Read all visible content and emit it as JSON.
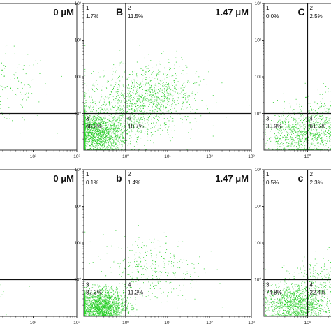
{
  "chart_data": [
    {
      "type": "scatter",
      "label": "",
      "concentration": "0 μM",
      "quadrants": [
        {
          "id": "1",
          "value": ""
        },
        {
          "id": "2",
          "value": ""
        },
        {
          "id": "3",
          "value": ""
        },
        {
          "id": "4",
          "value": ""
        }
      ],
      "xlim": [
        0.1,
        1000
      ],
      "ylim": [
        0.1,
        1000
      ],
      "log_scale": true,
      "gate": [
        1,
        1
      ],
      "x_tick_labels": [
        "10¹",
        "10²",
        "10³"
      ],
      "y_tick_labels": [],
      "point_color": "#22cc22",
      "clusters": [
        {
          "cx": 0.2,
          "cy": 0.35,
          "spread": 0.55,
          "n": 300
        },
        {
          "cx": 1.2,
          "cy": 0.7,
          "spread": 0.6,
          "n": 200
        }
      ]
    },
    {
      "type": "scatter",
      "label": "B",
      "concentration": "1.47 μM",
      "quadrants": [
        {
          "id": "1",
          "value": "1.7%"
        },
        {
          "id": "2",
          "value": "11.5%"
        },
        {
          "id": "3",
          "value": "68.2%"
        },
        {
          "id": "4",
          "value": "18.7%"
        }
      ],
      "xlim": [
        0.1,
        1000
      ],
      "ylim": [
        0.1,
        1000
      ],
      "log_scale": true,
      "gate": [
        1,
        1
      ],
      "x_tick_labels": [
        "10⁰",
        "10¹",
        "10²",
        "10³"
      ],
      "y_tick_labels": [
        "10⁰",
        "10¹",
        "10²",
        "10³"
      ],
      "point_color": "#22cc22",
      "clusters": [
        {
          "cx": -0.7,
          "cy": -0.55,
          "spread": 0.35,
          "n": 1600
        },
        {
          "cx": 0.1,
          "cy": 0.15,
          "spread": 0.6,
          "n": 900
        },
        {
          "cx": 0.8,
          "cy": 0.6,
          "spread": 0.5,
          "n": 500
        }
      ]
    },
    {
      "type": "scatter",
      "label": "C",
      "concentration": "",
      "quadrants": [
        {
          "id": "1",
          "value": "0.0%"
        },
        {
          "id": "2",
          "value": "2.5%"
        },
        {
          "id": "3",
          "value": "35.9%"
        },
        {
          "id": "4",
          "value": "61.5%"
        }
      ],
      "xlim": [
        0.1,
        1000
      ],
      "ylim": [
        0.1,
        1000
      ],
      "log_scale": true,
      "gate": [
        1,
        1
      ],
      "x_tick_labels": [
        "10⁰"
      ],
      "y_tick_labels": [
        "10⁰",
        "10¹",
        "10²",
        "10³"
      ],
      "point_color": "#22cc22",
      "clusters": [
        {
          "cx": -0.2,
          "cy": -0.6,
          "spread": 0.4,
          "n": 700
        },
        {
          "cx": 0.5,
          "cy": -0.3,
          "spread": 0.5,
          "n": 600
        }
      ]
    },
    {
      "type": "scatter",
      "label": "",
      "concentration": "0 μM",
      "quadrants": [
        {
          "id": "1",
          "value": ""
        },
        {
          "id": "2",
          "value": ""
        },
        {
          "id": "3",
          "value": ""
        },
        {
          "id": "4",
          "value": ""
        }
      ],
      "xlim": [
        0.1,
        1000
      ],
      "ylim": [
        0.1,
        1000
      ],
      "log_scale": true,
      "gate": [
        1,
        1
      ],
      "x_tick_labels": [
        "10¹",
        "10²",
        "10³"
      ],
      "y_tick_labels": [],
      "point_color": "#22cc22",
      "clusters": [
        {
          "cx": 0.3,
          "cy": -0.2,
          "spread": 0.45,
          "n": 250
        }
      ]
    },
    {
      "type": "scatter",
      "label": "b",
      "concentration": "1.47 μM",
      "quadrants": [
        {
          "id": "1",
          "value": "0.1%"
        },
        {
          "id": "2",
          "value": "1.4%"
        },
        {
          "id": "3",
          "value": "87.3%"
        },
        {
          "id": "4",
          "value": "11.2%"
        }
      ],
      "xlim": [
        0.1,
        1000
      ],
      "ylim": [
        0.1,
        1000
      ],
      "log_scale": true,
      "gate": [
        1,
        1
      ],
      "x_tick_labels": [
        "10⁰",
        "10¹",
        "10²",
        "10³"
      ],
      "y_tick_labels": [
        "10⁰",
        "10¹",
        "10²",
        "10³"
      ],
      "point_color": "#22cc22",
      "clusters": [
        {
          "cx": -0.6,
          "cy": -0.75,
          "spread": 0.3,
          "n": 1900
        },
        {
          "cx": 0.6,
          "cy": 0.3,
          "spread": 0.6,
          "n": 350
        }
      ]
    },
    {
      "type": "scatter",
      "label": "c",
      "concentration": "",
      "quadrants": [
        {
          "id": "1",
          "value": "0.5%"
        },
        {
          "id": "2",
          "value": "2.3%"
        },
        {
          "id": "3",
          "value": "74.8%"
        },
        {
          "id": "4",
          "value": "22.4%"
        }
      ],
      "xlim": [
        0.1,
        1000
      ],
      "ylim": [
        0.1,
        1000
      ],
      "log_scale": true,
      "gate": [
        1,
        1
      ],
      "x_tick_labels": [
        "10⁰"
      ],
      "y_tick_labels": [
        "10⁰",
        "10¹",
        "10²",
        "10³"
      ],
      "point_color": "#22cc22",
      "clusters": [
        {
          "cx": -0.3,
          "cy": -0.7,
          "spread": 0.35,
          "n": 1300
        },
        {
          "cx": 0.4,
          "cy": -0.1,
          "spread": 0.45,
          "n": 350
        }
      ]
    }
  ]
}
